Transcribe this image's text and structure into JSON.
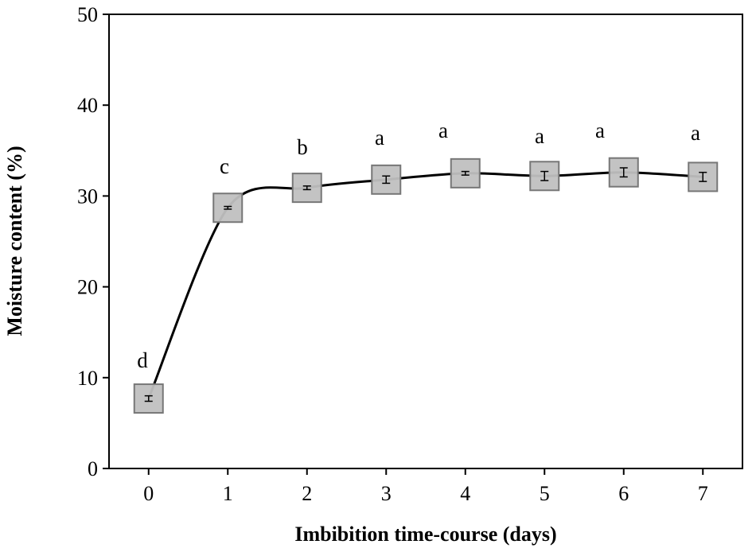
{
  "chart_data": {
    "type": "line",
    "title": "",
    "xlabel": "Imbibition time-course (days)",
    "ylabel": "Moisture content (%)",
    "x": [
      0,
      1,
      2,
      3,
      4,
      5,
      6,
      7
    ],
    "xlim": [
      -0.5,
      7.5
    ],
    "ylim": [
      0,
      50
    ],
    "yticks": [
      0,
      10,
      20,
      30,
      40,
      50
    ],
    "xticks": [
      0,
      1,
      2,
      3,
      4,
      5,
      6,
      7
    ],
    "grid": false,
    "legend": "none",
    "series": [
      {
        "values": [
          7.7,
          28.7,
          30.9,
          31.8,
          32.5,
          32.2,
          32.6,
          32.1
        ],
        "errors": [
          0.3,
          0.15,
          0.2,
          0.4,
          0.2,
          0.5,
          0.5,
          0.5
        ],
        "letters": [
          "d",
          "c",
          "b",
          "a",
          "a",
          "a",
          "a",
          "a"
        ],
        "marker": "square",
        "marker_color": "#c0c0c0",
        "line_color": "#000000"
      }
    ]
  }
}
